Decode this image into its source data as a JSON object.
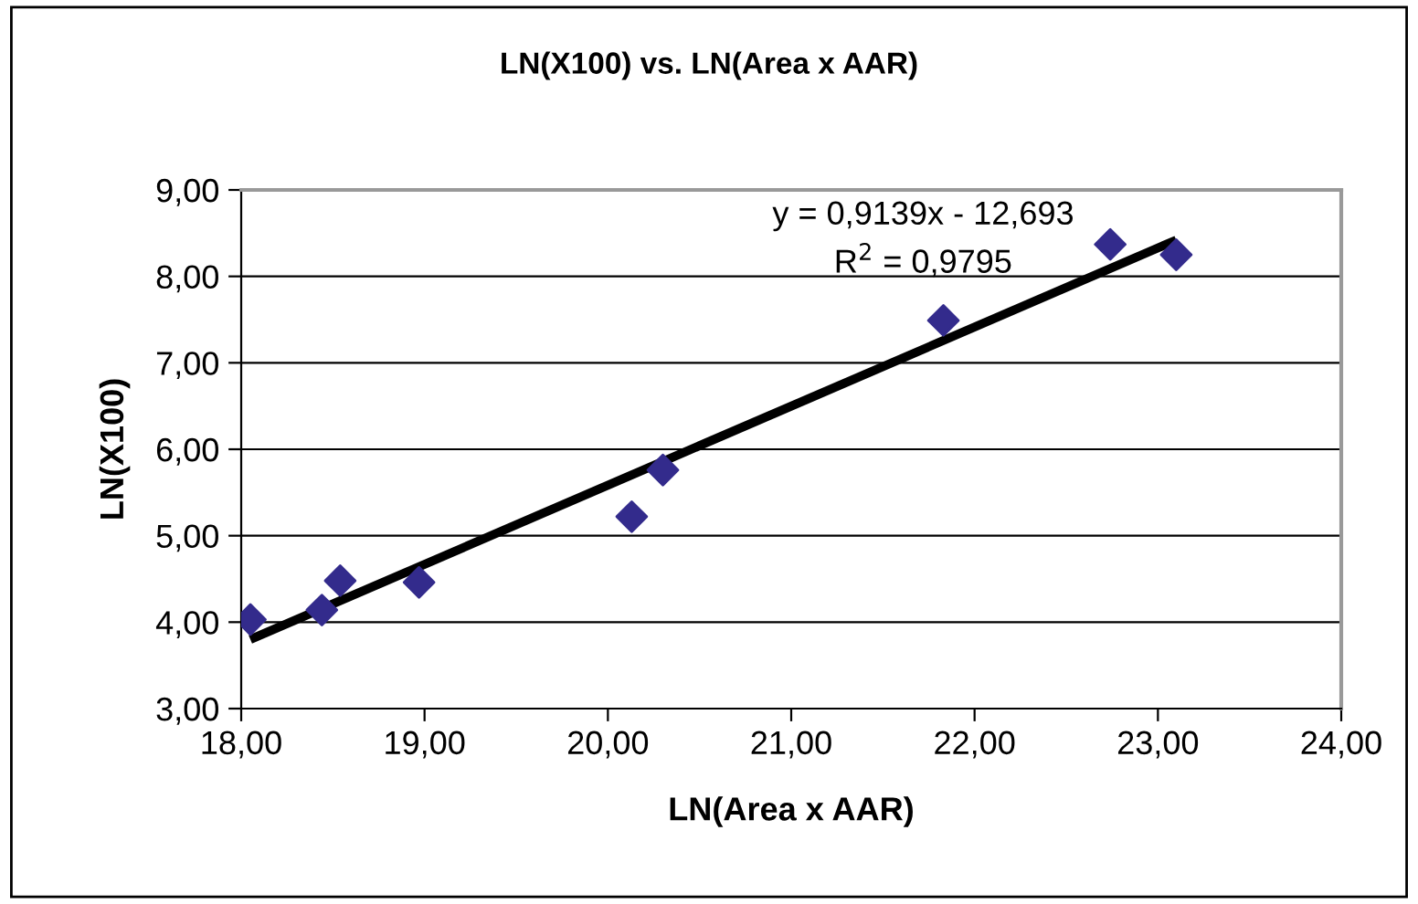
{
  "chart_data": {
    "type": "scatter",
    "title": "LN(X100) vs. LN(Area x AAR)",
    "xlabel": "LN(Area x AAR)",
    "ylabel": "LN(X100)",
    "series": [
      {
        "color": "#332b8c",
        "marker": "diamond",
        "x": [
          18.05,
          18.44,
          18.54,
          18.97,
          20.13,
          20.3,
          21.83,
          22.74,
          23.1
        ],
        "values": [
          4.03,
          4.14,
          4.48,
          4.46,
          5.22,
          5.76,
          7.49,
          8.37,
          8.25
        ]
      },
      {
        "type": "line",
        "color": "#000000",
        "marker": "none",
        "line_style": "solid",
        "x": [
          18.05,
          23.1
        ],
        "values": [
          3.8,
          8.42
        ]
      }
    ],
    "annotations": [
      "y = 0,9139x - 12,693",
      "R$^{2}$ = 0,9795"
    ],
    "xlim": [
      18,
      24
    ],
    "ylim": [
      3,
      9
    ],
    "xticks": [
      {
        "value": 18,
        "label": "18,00"
      },
      {
        "value": 19,
        "label": "19,00"
      },
      {
        "value": 20,
        "label": "20,00"
      },
      {
        "value": 21,
        "label": "21,00"
      },
      {
        "value": 22,
        "label": "22,00"
      },
      {
        "value": 23,
        "label": "23,00"
      },
      {
        "value": 24,
        "label": "24,00"
      }
    ],
    "yticks": [
      {
        "value": 3,
        "label": "3,00"
      },
      {
        "value": 4,
        "label": "4,00"
      },
      {
        "value": 5,
        "label": "5,00"
      },
      {
        "value": 6,
        "label": "6,00"
      },
      {
        "value": 7,
        "label": "7,00"
      },
      {
        "value": 8,
        "label": "8,00"
      },
      {
        "value": 9,
        "label": "9,00"
      }
    ],
    "grid": "y",
    "legend": false
  }
}
